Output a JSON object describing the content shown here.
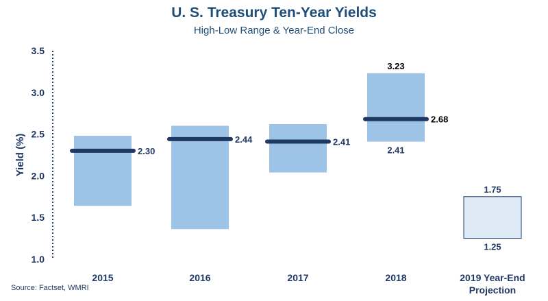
{
  "header": {
    "title": "U. S. Treasury Ten-Year Yields",
    "subtitle": "High-Low Range & Year-End Close"
  },
  "footer": {
    "source": "Source: Factset, WMRI"
  },
  "colors": {
    "range_fill": "#9dc3e6",
    "projection_fill": "#deebf7",
    "projection_stroke": "#1f3864",
    "close_line": "#1f3864",
    "text": "#1f3864",
    "label_dark": "#000000"
  },
  "chart_data": {
    "type": "bar",
    "title": "U. S. Treasury Ten-Year Yields",
    "subtitle": "High-Low Range & Year-End Close",
    "ylabel": "Yield (%)",
    "xlabel": "",
    "ylim": [
      1.0,
      3.5
    ],
    "yticks": [
      "1.0",
      "1.5",
      "2.0",
      "2.5",
      "3.0",
      "3.5"
    ],
    "grid": false,
    "categories": [
      "2015",
      "2016",
      "2017",
      "2018",
      "2019 Year-End Projection"
    ],
    "series": [
      {
        "name": "High-Low Range",
        "low": [
          1.64,
          1.36,
          2.04,
          2.41,
          1.25
        ],
        "high": [
          2.48,
          2.6,
          2.62,
          3.23,
          1.75
        ]
      },
      {
        "name": "Year-End Close",
        "values": [
          2.3,
          2.44,
          2.41,
          2.68,
          null
        ]
      }
    ],
    "labels": {
      "close": [
        "2.30",
        "2.44",
        "2.41",
        "2.68",
        null
      ],
      "high": [
        null,
        null,
        null,
        "3.23",
        "1.75"
      ],
      "low": [
        null,
        null,
        null,
        "2.41",
        "1.25"
      ]
    }
  }
}
